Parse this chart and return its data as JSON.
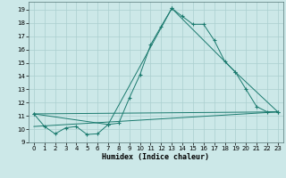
{
  "title": "",
  "xlabel": "Humidex (Indice chaleur)",
  "background_color": "#cce8e8",
  "grid_color": "#aacfcf",
  "line_color": "#1a7a6e",
  "xlim": [
    -0.5,
    23.5
  ],
  "ylim": [
    9.0,
    19.6
  ],
  "yticks": [
    9,
    10,
    11,
    12,
    13,
    14,
    15,
    16,
    17,
    18,
    19
  ],
  "xticks": [
    0,
    1,
    2,
    3,
    4,
    5,
    6,
    7,
    8,
    9,
    10,
    11,
    12,
    13,
    14,
    15,
    16,
    17,
    18,
    19,
    20,
    21,
    22,
    23
  ],
  "series1_x": [
    0,
    1,
    2,
    3,
    4,
    5,
    6,
    7,
    8,
    9,
    10,
    11,
    12,
    13,
    14,
    15,
    16,
    17,
    18,
    19,
    20,
    21,
    22,
    23
  ],
  "series1_y": [
    11.15,
    10.2,
    9.65,
    10.1,
    10.2,
    9.6,
    9.65,
    10.35,
    10.45,
    12.35,
    14.1,
    16.35,
    17.75,
    19.1,
    18.5,
    17.9,
    17.9,
    16.7,
    15.1,
    14.3,
    13.0,
    11.7,
    11.3,
    11.3
  ],
  "series2_x": [
    0,
    7,
    13,
    19,
    23
  ],
  "series2_y": [
    11.15,
    10.35,
    19.1,
    14.3,
    11.3
  ],
  "series3_x": [
    0,
    23
  ],
  "series3_y": [
    11.15,
    11.3
  ],
  "series4_x": [
    0,
    23
  ],
  "series4_y": [
    10.2,
    11.3
  ]
}
